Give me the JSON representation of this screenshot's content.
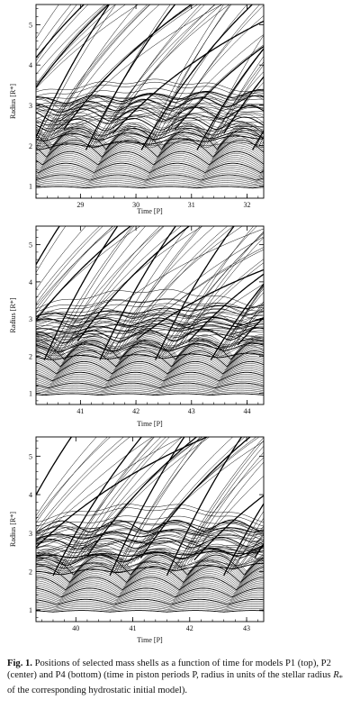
{
  "chart_data": [
    {
      "type": "line",
      "panel": "top",
      "model": "P1",
      "xlabel": "Time [P]",
      "ylabel": "Radius [R*]",
      "xlim": [
        28.2,
        32.3
      ],
      "ylim": [
        0.7,
        5.5
      ],
      "xticks": [
        29,
        30,
        31,
        32
      ],
      "yticks": [
        1,
        2,
        3,
        4,
        5
      ],
      "pulsation_phase": 0.1,
      "series": []
    },
    {
      "type": "line",
      "panel": "center",
      "model": "P2",
      "xlabel": "Time [P]",
      "ylabel": "Radius [R*]",
      "xlim": [
        40.2,
        44.3
      ],
      "ylim": [
        0.7,
        5.5
      ],
      "xticks": [
        41,
        42,
        43,
        44
      ],
      "yticks": [
        1,
        2,
        3,
        4,
        5
      ],
      "pulsation_phase": 0.35,
      "series": []
    },
    {
      "type": "line",
      "panel": "bottom",
      "model": "P4",
      "xlabel": "Time [P]",
      "ylabel": "Radius [R*]",
      "xlim": [
        39.3,
        43.3
      ],
      "ylim": [
        0.7,
        5.5
      ],
      "xticks": [
        40,
        41,
        42,
        43
      ],
      "yticks": [
        1,
        2,
        3,
        4,
        5
      ],
      "pulsation_phase": 0.6,
      "series": []
    }
  ],
  "caption": {
    "label": "Fig. 1.",
    "text_before_math": " Positions of selected mass shells as a function of time for models P1 (top), P2 (center) and P4 (bottom) (time in piston periods P, radius in units of the stellar radius ",
    "math_symbol": "R",
    "math_subscript": "*",
    "text_after_math": " of the corresponding hydrostatic initial model)."
  }
}
